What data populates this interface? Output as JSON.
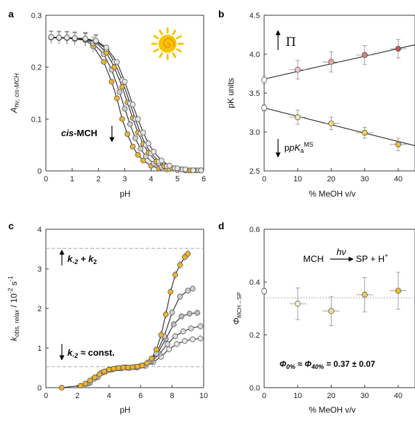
{
  "chart_data": [
    {
      "panel": "a",
      "type": "line",
      "xlabel": "pH",
      "ylabel_main": "A",
      "ylabel_sub": "hν, cis-MCH",
      "xlim": [
        0,
        6
      ],
      "ylim": [
        0,
        0.3
      ],
      "xticks": [
        "0",
        "1",
        "2",
        "3",
        "4",
        "5",
        "6"
      ],
      "yticks": [
        "0",
        "0.1",
        "0.2",
        "0.3"
      ],
      "annotation_bold_italic": "cis",
      "annotation_bold": "-MCH",
      "icon": "sun-icon",
      "series": [
        {
          "name": "",
          "x": [
            0.2,
            0.5,
            0.8,
            1.1,
            1.5,
            1.8,
            2.2,
            2.5,
            2.7,
            2.9,
            3.1,
            3.3,
            3.5,
            3.7,
            4.0,
            4.3,
            4.6,
            5.0,
            5.3,
            5.7
          ],
          "values": [
            0.257,
            0.256,
            0.256,
            0.254,
            0.252,
            0.24,
            0.21,
            0.172,
            0.14,
            0.1,
            0.071,
            0.047,
            0.031,
            0.02,
            0.01,
            0.005,
            0.003,
            0.002,
            0.001,
            0.001
          ]
        },
        {
          "name": "",
          "x": [
            0.2,
            0.5,
            0.8,
            1.1,
            1.5,
            1.8,
            2.2,
            2.5,
            2.8,
            3.0,
            3.2,
            3.4,
            3.6,
            3.8,
            4.1,
            4.4,
            4.7,
            5.0,
            5.4,
            5.8
          ],
          "values": [
            0.257,
            0.256,
            0.256,
            0.255,
            0.253,
            0.246,
            0.225,
            0.195,
            0.152,
            0.12,
            0.09,
            0.063,
            0.043,
            0.028,
            0.014,
            0.007,
            0.004,
            0.002,
            0.001,
            0.001
          ]
        },
        {
          "name": "",
          "x": [
            0.2,
            0.5,
            0.8,
            1.1,
            1.5,
            1.9,
            2.3,
            2.6,
            2.9,
            3.1,
            3.3,
            3.5,
            3.7,
            3.9,
            4.2,
            4.5,
            4.8,
            5.1,
            5.5,
            5.9
          ],
          "values": [
            0.257,
            0.257,
            0.256,
            0.255,
            0.254,
            0.248,
            0.228,
            0.2,
            0.162,
            0.132,
            0.102,
            0.074,
            0.052,
            0.035,
            0.018,
            0.009,
            0.005,
            0.003,
            0.001,
            0.001
          ]
        },
        {
          "name": "",
          "x": [
            0.2,
            0.5,
            0.8,
            1.1,
            1.5,
            1.9,
            2.3,
            2.6,
            2.9,
            3.2,
            3.4,
            3.6,
            3.8,
            4.0,
            4.3,
            4.6,
            4.9,
            5.2,
            5.6,
            5.9
          ],
          "values": [
            0.258,
            0.257,
            0.257,
            0.256,
            0.255,
            0.25,
            0.235,
            0.21,
            0.175,
            0.13,
            0.1,
            0.072,
            0.05,
            0.034,
            0.018,
            0.009,
            0.005,
            0.003,
            0.001,
            0.001
          ]
        },
        {
          "name": "",
          "x": [
            0.2,
            0.5,
            0.8,
            1.1,
            1.5,
            1.9,
            2.3,
            2.7,
            3.0,
            3.3,
            3.5,
            3.7,
            3.9,
            4.1,
            4.4,
            4.7,
            5.0,
            5.3,
            5.6,
            5.9
          ],
          "values": [
            0.258,
            0.257,
            0.257,
            0.256,
            0.255,
            0.251,
            0.238,
            0.21,
            0.172,
            0.128,
            0.1,
            0.074,
            0.053,
            0.037,
            0.02,
            0.01,
            0.005,
            0.003,
            0.001,
            0.001
          ]
        }
      ],
      "error_bars": true
    },
    {
      "panel": "b",
      "type": "scatter",
      "xlabel": "% MeOH v/v",
      "ylabel": "pK units",
      "xlim": [
        0,
        45
      ],
      "ylim": [
        2.5,
        4.5
      ],
      "xticks": [
        "0",
        "10",
        "20",
        "30",
        "40"
      ],
      "yticks": [
        "2.5",
        "3.0",
        "3.5",
        "4.0",
        "4.5"
      ],
      "annotation_upper": "Π",
      "annotation_lower_main": "pK",
      "annotation_lower_sub": "a",
      "annotation_lower_sup": "MS",
      "series": [
        {
          "name": "Π",
          "x": [
            0,
            10,
            20,
            30,
            40
          ],
          "values": [
            3.67,
            3.8,
            3.9,
            3.99,
            4.07
          ],
          "errors": [
            0.05,
            0.12,
            0.13,
            0.12,
            0.12
          ],
          "fit": {
            "intercept": 3.68,
            "slope": 0.0098
          }
        },
        {
          "name": "pKaMS",
          "x": [
            0,
            10,
            20,
            30,
            40
          ],
          "values": [
            3.31,
            3.19,
            3.11,
            2.99,
            2.84
          ],
          "errors": [
            0.04,
            0.09,
            0.08,
            0.07,
            0.08
          ],
          "fit": {
            "intercept": 3.31,
            "slope": -0.0108
          }
        }
      ]
    },
    {
      "panel": "c",
      "type": "line",
      "xlabel": "pH",
      "ylabel_main": "k",
      "ylabel_sub": "obs, relax",
      "ylabel_unit": " / 10",
      "ylabel_exp": "-2",
      "ylabel_tail": " s",
      "ylabel_tail_exp": "-1",
      "xlim": [
        0,
        10
      ],
      "ylim": [
        0,
        4
      ],
      "xticks": [
        "0",
        "2",
        "4",
        "6",
        "8",
        "10"
      ],
      "yticks": [
        "0",
        "1",
        "2",
        "3",
        "4"
      ],
      "hlines": [
        3.52,
        0.53
      ],
      "annotation_upper_a": "k",
      "annotation_upper_a_sub": "-2",
      "annotation_upper_b": " + k",
      "annotation_upper_b_sub": "2",
      "annotation_lower_a": "k",
      "annotation_lower_a_sub": "-2",
      "annotation_lower_b": " ≈ const.",
      "series": [
        {
          "name": "",
          "x": [
            1.0,
            2.2,
            2.5,
            2.8,
            3.1,
            3.4,
            3.7,
            4.0,
            4.3,
            4.6,
            4.9,
            5.2,
            5.5,
            5.8,
            6.1,
            6.4,
            6.7,
            7.0,
            7.3,
            7.6,
            7.9,
            8.2,
            8.5,
            8.8,
            9.0
          ],
          "values": [
            0.0,
            0.05,
            0.1,
            0.18,
            0.26,
            0.34,
            0.41,
            0.46,
            0.48,
            0.5,
            0.51,
            0.51,
            0.52,
            0.53,
            0.56,
            0.62,
            0.74,
            0.96,
            1.33,
            1.85,
            2.42,
            2.85,
            3.1,
            3.3,
            3.38
          ]
        },
        {
          "name": "",
          "x": [
            2.5,
            3.0,
            3.5,
            4.0,
            4.5,
            5.0,
            5.5,
            6.0,
            6.5,
            7.0,
            7.5,
            8.0,
            8.5,
            9.0,
            9.3
          ],
          "values": [
            0.09,
            0.22,
            0.37,
            0.45,
            0.49,
            0.51,
            0.52,
            0.55,
            0.64,
            0.86,
            1.3,
            1.9,
            2.3,
            2.45,
            2.5
          ]
        },
        {
          "name": "",
          "x": [
            2.6,
            3.1,
            3.6,
            4.1,
            4.6,
            5.1,
            5.6,
            6.1,
            6.6,
            7.1,
            7.6,
            8.1,
            8.6,
            9.1,
            9.6
          ],
          "values": [
            0.1,
            0.24,
            0.38,
            0.45,
            0.49,
            0.51,
            0.52,
            0.56,
            0.65,
            0.88,
            1.23,
            1.6,
            1.8,
            1.87,
            1.89
          ]
        },
        {
          "name": "",
          "x": [
            2.7,
            3.2,
            3.7,
            4.2,
            4.7,
            5.2,
            5.7,
            6.2,
            6.7,
            7.2,
            7.7,
            8.2,
            8.7,
            9.2,
            9.8
          ],
          "values": [
            0.11,
            0.26,
            0.4,
            0.46,
            0.49,
            0.5,
            0.52,
            0.56,
            0.66,
            0.85,
            1.1,
            1.3,
            1.42,
            1.5,
            1.55
          ]
        },
        {
          "name": "",
          "x": [
            2.8,
            3.3,
            3.8,
            4.3,
            4.8,
            5.3,
            5.8,
            6.3,
            6.8,
            7.3,
            7.8,
            8.3,
            8.8,
            9.3,
            9.8
          ],
          "values": [
            0.12,
            0.27,
            0.41,
            0.47,
            0.49,
            0.5,
            0.51,
            0.55,
            0.64,
            0.78,
            0.97,
            1.1,
            1.18,
            1.22,
            1.24
          ]
        }
      ]
    },
    {
      "panel": "d",
      "type": "scatter",
      "xlabel": "% MeOH v/v",
      "ylabel_main": "Φ",
      "ylabel_sub": "MCH→SP",
      "xlim": [
        0,
        45
      ],
      "ylim": [
        0.0,
        0.6
      ],
      "xticks": [
        "0",
        "10",
        "20",
        "30",
        "40"
      ],
      "yticks": [
        "0.0",
        "0.2",
        "0.4",
        "0.6"
      ],
      "hline": 0.34,
      "reaction_left": "MCH",
      "reaction_arrow_label": "hν",
      "reaction_right": "SP + H",
      "reaction_right_sup": "+",
      "summary_phi": "Φ",
      "summary_sub1": "0%",
      "summary_mid": " ≈ ",
      "summary_sub2": "40%",
      "summary_end": " = 0.37 ± 0.07",
      "series": [
        {
          "name": "",
          "x": [
            0,
            10,
            20,
            30,
            40
          ],
          "values": [
            0.365,
            0.318,
            0.29,
            0.352,
            0.367
          ],
          "errors": [
            0.01,
            0.06,
            0.055,
            0.065,
            0.07
          ]
        }
      ]
    }
  ],
  "panel_labels": [
    "a",
    "b",
    "c",
    "d"
  ]
}
